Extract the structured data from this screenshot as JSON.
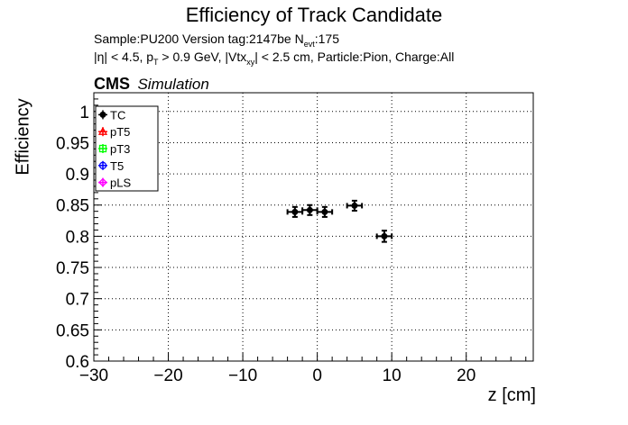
{
  "header": {
    "title": "Efficiency of Track Candidate",
    "info_line1_a": "Sample:PU200   Version tag:2147be  N",
    "info_line1_sub": "evt",
    "info_line1_b": ":175",
    "info_line2_a": "|η| < 4.5, p",
    "info_line2_sub1": "T",
    "info_line2_b": " > 0.9 GeV, |Vtx",
    "info_line2_sub2": "xy",
    "info_line2_c": "| < 2.5 cm, Particle:Pion, Charge:All",
    "cms_label": "CMS",
    "simulation_label": "Simulation"
  },
  "colors": {
    "TC": "#000000",
    "pT5": "#ff0000",
    "pT3": "#00ff00",
    "T5": "#0000ff",
    "pLS": "#ff00ff",
    "grid": "#000000"
  },
  "chart_data": {
    "type": "scatter",
    "xlabel": "z [cm]",
    "ylabel": "Efficiency",
    "xlim": [
      -30,
      29
    ],
    "ylim": [
      0.6,
      1.03
    ],
    "x_ticks": [
      -30,
      -20,
      -10,
      0,
      10,
      20
    ],
    "x_tick_labels": [
      "−30",
      "−20",
      "−10",
      "0",
      "10",
      "20"
    ],
    "y_ticks": [
      0.6,
      0.65,
      0.7,
      0.75,
      0.8,
      0.85,
      0.9,
      0.95,
      1
    ],
    "y_tick_labels": [
      "0.6",
      "0.65",
      "0.7",
      "0.75",
      "0.8",
      "0.85",
      "0.9",
      "0.95",
      "1"
    ],
    "grid": true,
    "legend_position": "top-left",
    "legend": [
      "TC",
      "pT5",
      "pT3",
      "T5",
      "pLS"
    ],
    "series": [
      {
        "name": "TC",
        "x": [
          -3,
          -1,
          1,
          5,
          9
        ],
        "y": [
          0.839,
          0.842,
          0.839,
          0.849,
          0.8
        ],
        "xerr": [
          1,
          1,
          1,
          1,
          1
        ],
        "yerr": [
          0.008,
          0.008,
          0.008,
          0.008,
          0.009
        ]
      },
      {
        "name": "pT5",
        "x": [],
        "y": []
      },
      {
        "name": "pT3",
        "x": [],
        "y": []
      },
      {
        "name": "T5",
        "x": [],
        "y": []
      },
      {
        "name": "pLS",
        "x": [],
        "y": []
      }
    ]
  }
}
